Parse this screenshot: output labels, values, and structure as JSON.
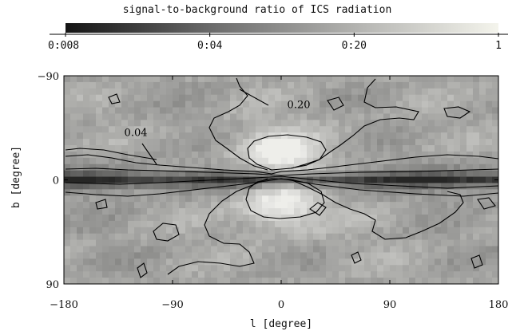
{
  "chart_data": {
    "type": "heatmap",
    "title": "signal-to-background ratio of ICS radiation",
    "colorbar": {
      "scale": "log",
      "range": [
        0.008,
        1
      ],
      "tick_labels": [
        "0:008",
        "0:04",
        "0:20",
        "1"
      ],
      "tick_values": [
        0.008,
        0.04,
        0.2,
        1
      ],
      "colors": [
        "#141414",
        "#f4f4ec"
      ]
    },
    "xlabel": "l [degree]",
    "ylabel": "b [degree]",
    "xlim": [
      -180,
      180
    ],
    "ylim": [
      -90,
      90
    ],
    "y_direction": "down",
    "x_tick_labels": [
      "-180",
      "-90",
      "0",
      "90",
      "180"
    ],
    "x_tick_values": [
      -180,
      -90,
      0,
      90,
      180
    ],
    "y_tick_labels": [
      "-90",
      "0",
      "90"
    ],
    "y_tick_values": [
      -90,
      0,
      90
    ],
    "contour_labels": [
      {
        "text": "0.20",
        "l": 5,
        "b": -62
      },
      {
        "text": "0.04",
        "l": -130,
        "b": -38
      }
    ],
    "contour_levels": [
      0.04,
      0.2
    ],
    "grid": false
  }
}
